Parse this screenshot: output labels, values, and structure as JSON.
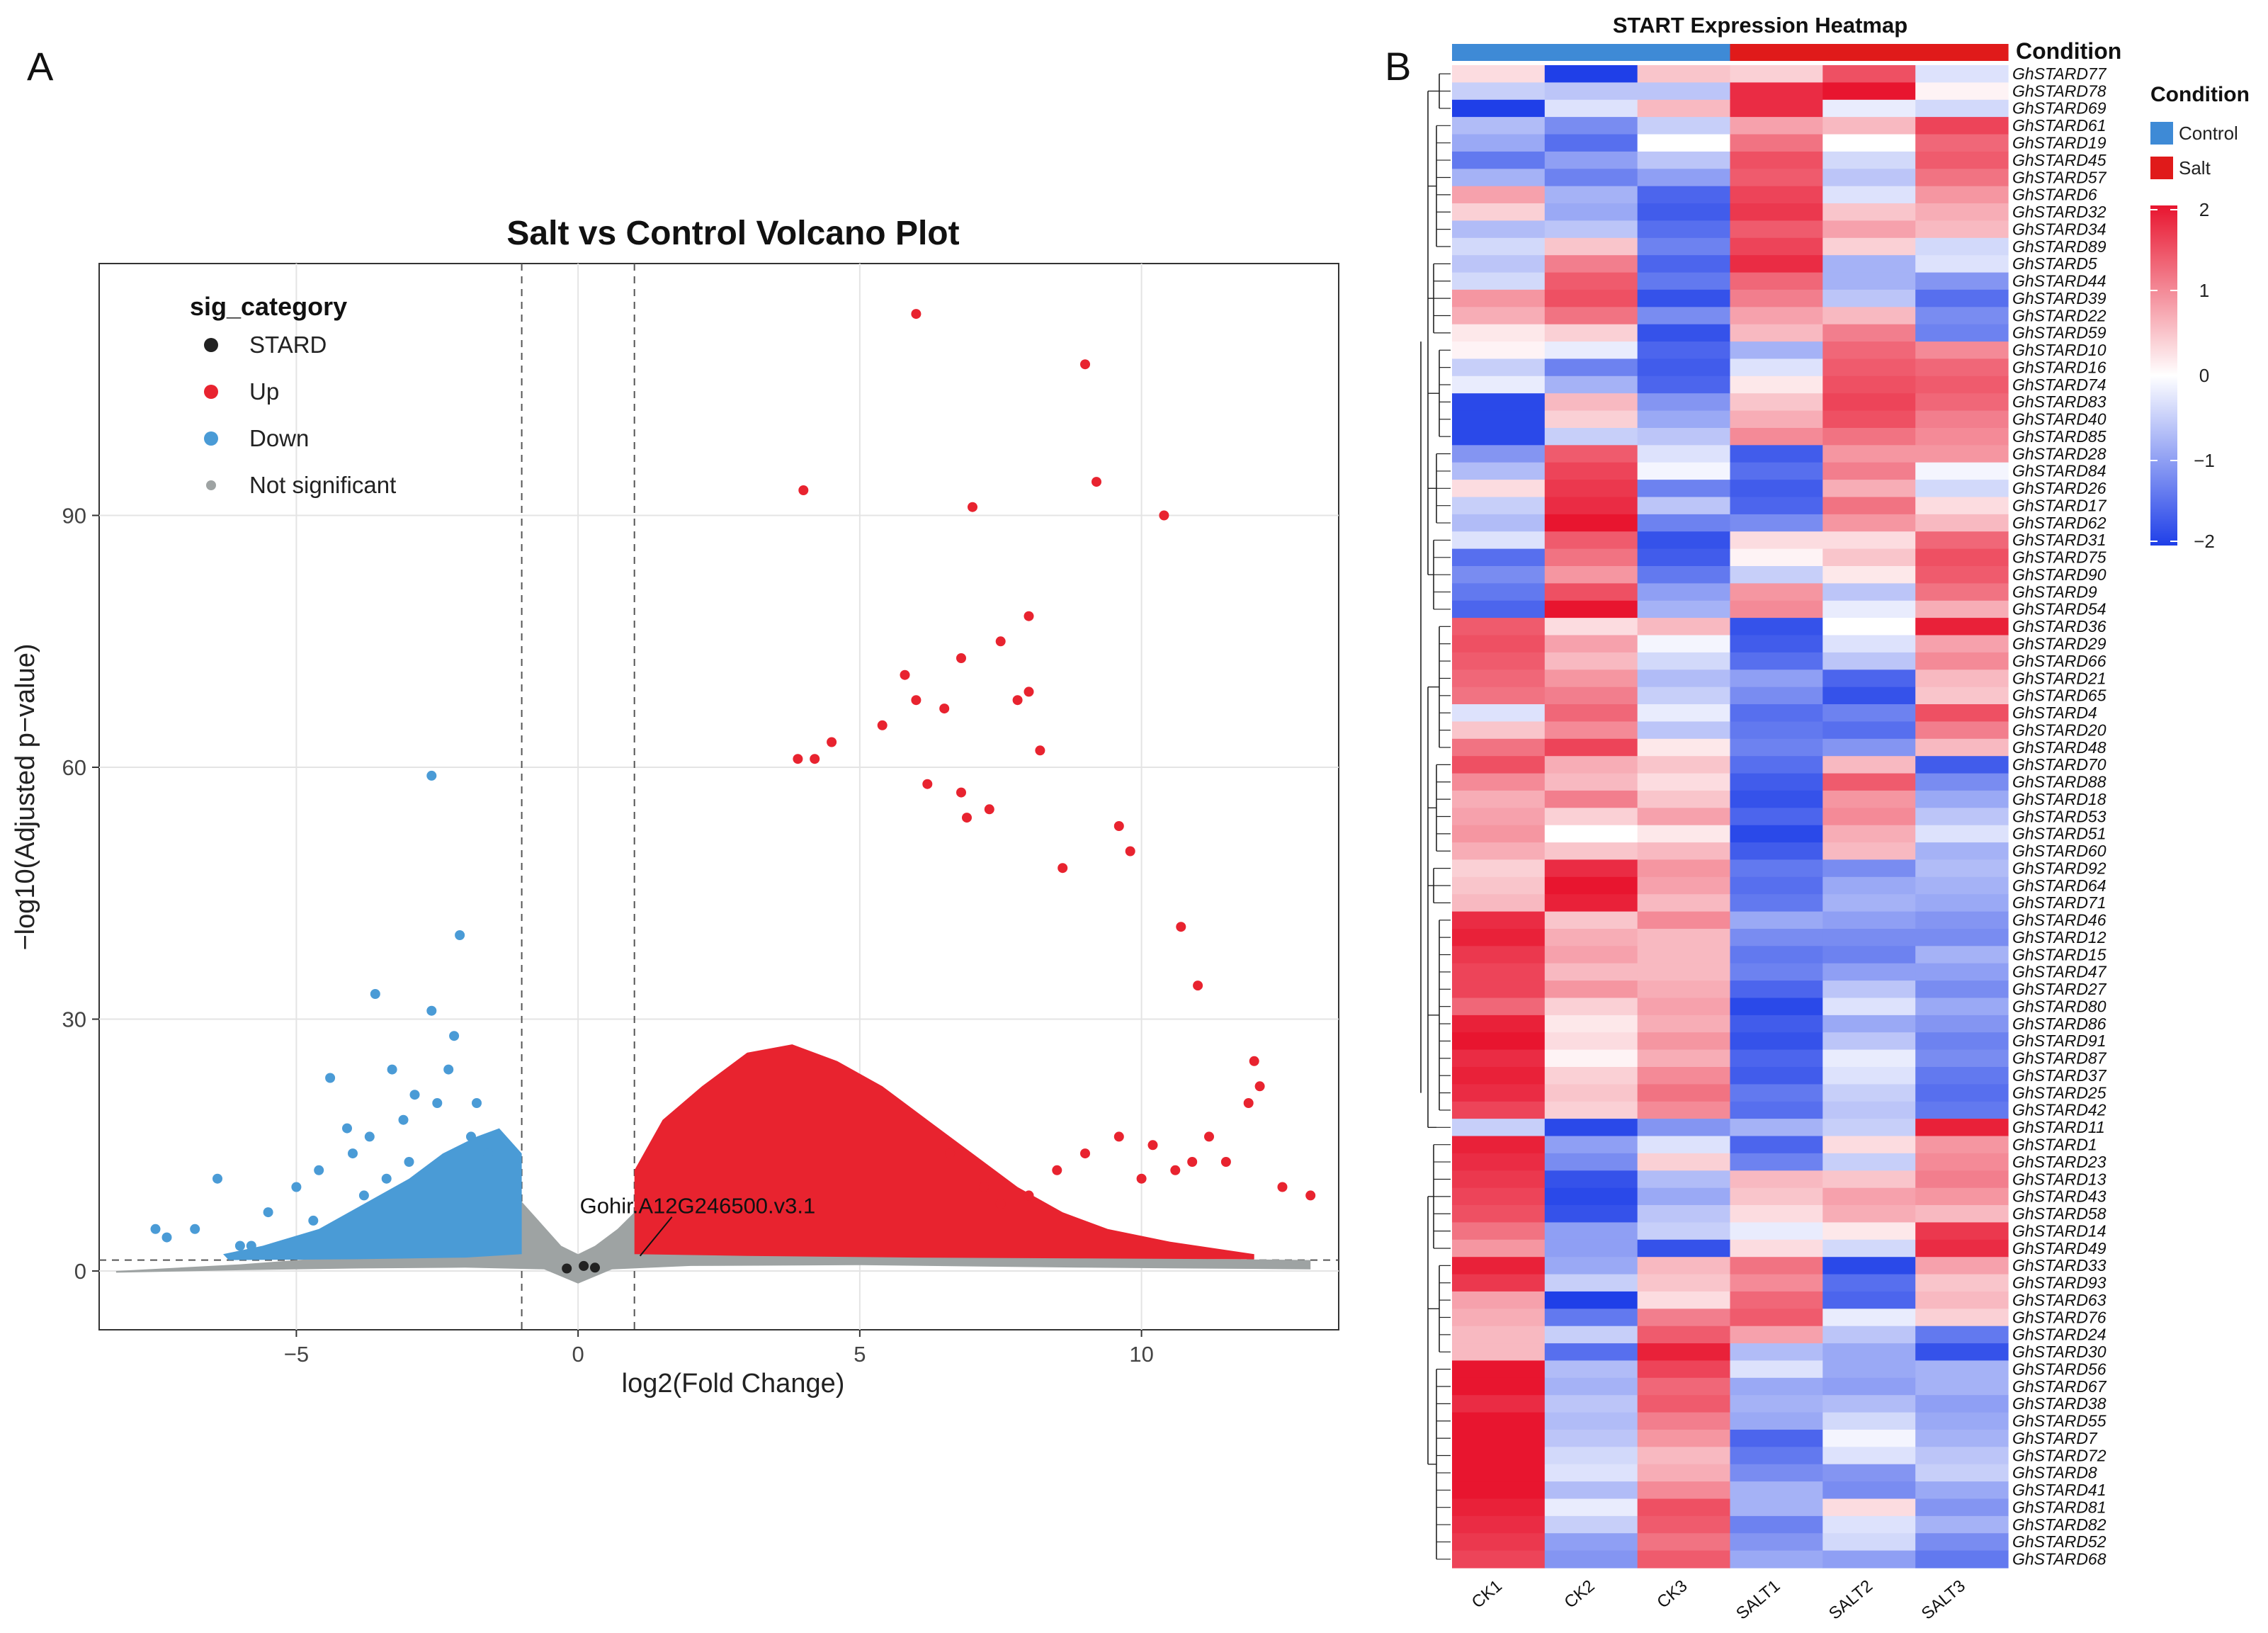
{
  "colors": {
    "up": "#e8232f",
    "down": "#4a9bd6",
    "ns": "#9ea3a3",
    "stard": "#222222",
    "control": "#3e8ad6",
    "salt": "#e01a1a",
    "low": "#1f3fe8",
    "mid": "#ffffff",
    "high": "#e8152f"
  },
  "panel_a": {
    "letter": "A"
  },
  "panel_b": {
    "letter": "B"
  },
  "chart_data": [
    {
      "type": "scatter",
      "title": "Salt vs Control Volcano Plot",
      "xlabel": "log2(Fold Change)",
      "ylabel": "−log10(Adjusted p−value)",
      "xlim": [
        -8.5,
        13.5
      ],
      "ylim": [
        -7,
        120
      ],
      "xticks": [
        -5,
        0,
        5,
        10
      ],
      "xtick_labels": [
        "−5",
        "0",
        "5",
        "10"
      ],
      "yticks": [
        0,
        30,
        60,
        90
      ],
      "ytick_labels": [
        "0",
        "30",
        "60",
        "90"
      ],
      "thresholds": {
        "log2fc": [
          -1,
          1
        ],
        "neg_log10_padj": 1.3
      },
      "legend": {
        "title": "sig_category",
        "position": "top-left",
        "entries": [
          {
            "key": "stard",
            "label": "STARD"
          },
          {
            "key": "up",
            "label": "Up"
          },
          {
            "key": "down",
            "label": "Down"
          },
          {
            "key": "ns",
            "label": "Not significant"
          }
        ]
      },
      "annotation": {
        "label": "Gohir.A12G246500.v3.1",
        "x": 1.1,
        "y": 1.8
      },
      "series": [
        {
          "name": "Up",
          "key": "up",
          "points": [
            [
              6.0,
              114
            ],
            [
              9.0,
              108
            ],
            [
              4.0,
              93
            ],
            [
              9.2,
              94
            ],
            [
              7.0,
              91
            ],
            [
              10.4,
              90
            ],
            [
              8.0,
              78
            ],
            [
              7.5,
              75
            ],
            [
              6.8,
              73
            ],
            [
              5.8,
              71
            ],
            [
              7.8,
              68
            ],
            [
              8.0,
              69
            ],
            [
              6.0,
              68
            ],
            [
              6.5,
              67
            ],
            [
              5.4,
              65
            ],
            [
              8.2,
              62
            ],
            [
              4.5,
              63
            ],
            [
              3.9,
              61
            ],
            [
              4.2,
              61
            ],
            [
              6.2,
              58
            ],
            [
              6.8,
              57
            ],
            [
              7.3,
              55
            ],
            [
              6.9,
              54
            ],
            [
              9.6,
              53
            ],
            [
              9.8,
              50
            ],
            [
              8.6,
              48
            ],
            [
              10.7,
              41
            ],
            [
              11.0,
              34
            ],
            [
              12.0,
              25
            ],
            [
              11.9,
              20
            ],
            [
              12.1,
              22
            ],
            [
              12.5,
              10
            ],
            [
              13.0,
              9
            ],
            [
              11.5,
              13
            ],
            [
              10.6,
              12
            ],
            [
              10.0,
              11
            ],
            [
              9.0,
              14
            ],
            [
              8.5,
              12
            ],
            [
              8.0,
              9
            ],
            [
              7.5,
              8
            ],
            [
              9.6,
              16
            ],
            [
              10.2,
              15
            ],
            [
              10.9,
              13
            ],
            [
              11.2,
              16
            ],
            [
              6.6,
              14
            ],
            [
              7.2,
              10
            ]
          ]
        },
        {
          "name": "Down",
          "key": "down",
          "points": [
            [
              -2.6,
              59
            ],
            [
              -2.1,
              40
            ],
            [
              -3.6,
              33
            ],
            [
              -2.6,
              31
            ],
            [
              -4.4,
              23
            ],
            [
              -3.3,
              24
            ],
            [
              -2.3,
              24
            ],
            [
              -4.1,
              17
            ],
            [
              -3.1,
              18
            ],
            [
              -2.5,
              20
            ],
            [
              -7.5,
              5
            ],
            [
              -7.3,
              4
            ],
            [
              -6.4,
              11
            ],
            [
              -5.0,
              10
            ],
            [
              -5.5,
              7
            ],
            [
              -6.0,
              3
            ],
            [
              -4.6,
              12
            ],
            [
              -4.0,
              14
            ],
            [
              -3.8,
              9
            ],
            [
              -3.0,
              13
            ],
            [
              -1.8,
              20
            ],
            [
              -1.6,
              14
            ],
            [
              -5.8,
              3
            ],
            [
              -6.8,
              5
            ],
            [
              -2.9,
              21
            ],
            [
              -3.4,
              11
            ],
            [
              -4.7,
              6
            ],
            [
              -2.2,
              28
            ],
            [
              -1.9,
              16
            ],
            [
              -3.7,
              16
            ]
          ]
        },
        {
          "name": "STARD",
          "key": "stard",
          "points": [
            [
              0.1,
              0.6
            ],
            [
              -0.2,
              0.3
            ],
            [
              0.3,
              0.4
            ]
          ]
        }
      ]
    },
    {
      "type": "heatmap",
      "title": "START Expression Heatmap",
      "columns": [
        "CK1",
        "CK2",
        "CK3",
        "SALT1",
        "SALT2",
        "SALT3"
      ],
      "column_condition": [
        "Control",
        "Control",
        "Control",
        "Salt",
        "Salt",
        "Salt"
      ],
      "condition_label": "Condition",
      "legend": {
        "title": "Condition",
        "entries": [
          {
            "label": "Control",
            "key": "control"
          },
          {
            "label": "Salt",
            "key": "salt"
          }
        ],
        "scale_min": -2,
        "scale_max": 2,
        "scale_ticks": [
          2,
          1,
          0,
          -1,
          -2
        ],
        "scale_tick_labels": [
          "2",
          "1",
          "0",
          "−1",
          "−2"
        ]
      },
      "rows": [
        "GhSTARD77",
        "GhSTARD78",
        "GhSTARD69",
        "GhSTARD61",
        "GhSTARD19",
        "GhSTARD45",
        "GhSTARD57",
        "GhSTARD6",
        "GhSTARD32",
        "GhSTARD34",
        "GhSTARD89",
        "GhSTARD5",
        "GhSTARD44",
        "GhSTARD39",
        "GhSTARD22",
        "GhSTARD59",
        "GhSTARD10",
        "GhSTARD16",
        "GhSTARD74",
        "GhSTARD83",
        "GhSTARD40",
        "GhSTARD85",
        "GhSTARD28",
        "GhSTARD84",
        "GhSTARD26",
        "GhSTARD17",
        "GhSTARD62",
        "GhSTARD31",
        "GhSTARD75",
        "GhSTARD90",
        "GhSTARD9",
        "GhSTARD54",
        "GhSTARD36",
        "GhSTARD29",
        "GhSTARD66",
        "GhSTARD21",
        "GhSTARD65",
        "GhSTARD4",
        "GhSTARD20",
        "GhSTARD48",
        "GhSTARD70",
        "GhSTARD88",
        "GhSTARD18",
        "GhSTARD53",
        "GhSTARD51",
        "GhSTARD60",
        "GhSTARD92",
        "GhSTARD64",
        "GhSTARD71",
        "GhSTARD46",
        "GhSTARD12",
        "GhSTARD15",
        "GhSTARD47",
        "GhSTARD27",
        "GhSTARD80",
        "GhSTARD86",
        "GhSTARD91",
        "GhSTARD87",
        "GhSTARD37",
        "GhSTARD25",
        "GhSTARD42",
        "GhSTARD11",
        "GhSTARD1",
        "GhSTARD23",
        "GhSTARD13",
        "GhSTARD43",
        "GhSTARD58",
        "GhSTARD14",
        "GhSTARD49",
        "GhSTARD33",
        "GhSTARD93",
        "GhSTARD63",
        "GhSTARD76",
        "GhSTARD24",
        "GhSTARD30",
        "GhSTARD56",
        "GhSTARD67",
        "GhSTARD38",
        "GhSTARD55",
        "GhSTARD7",
        "GhSTARD72",
        "GhSTARD8",
        "GhSTARD41",
        "GhSTARD81",
        "GhSTARD82",
        "GhSTARD52",
        "GhSTARD68"
      ],
      "values": [
        [
          0.3,
          -2,
          0.5,
          0.4,
          1.5,
          -0.3
        ],
        [
          -0.5,
          -0.6,
          -0.6,
          1.8,
          2,
          0.1
        ],
        [
          -2,
          -0.3,
          0.6,
          1.8,
          -0.2,
          -0.4
        ],
        [
          -0.7,
          -1.2,
          -0.5,
          0.8,
          0.6,
          1.6
        ],
        [
          -0.9,
          -1.5,
          0,
          1.2,
          0,
          1.3
        ],
        [
          -1.4,
          -1,
          -0.6,
          1.5,
          -0.4,
          1.4
        ],
        [
          -0.8,
          -1.3,
          -1,
          1.4,
          -0.6,
          1.2
        ],
        [
          0.8,
          -0.8,
          -1.6,
          1.6,
          -0.3,
          0.9
        ],
        [
          0.4,
          -0.9,
          -1.7,
          1.7,
          0.5,
          0.7
        ],
        [
          -0.7,
          -0.6,
          -1.5,
          1.4,
          0.8,
          0.6
        ],
        [
          -0.4,
          0.5,
          -1.3,
          1.6,
          0.4,
          -0.4
        ],
        [
          -0.6,
          1.1,
          -1.6,
          1.8,
          -0.8,
          -0.3
        ],
        [
          -0.4,
          1.4,
          -1.4,
          1.3,
          -0.8,
          -1.1
        ],
        [
          0.9,
          1.5,
          -1.8,
          1.1,
          -0.6,
          -1.5
        ],
        [
          0.7,
          1.2,
          -1.2,
          0.8,
          0.6,
          -1.2
        ],
        [
          0.2,
          0.4,
          -1.8,
          0.6,
          1.1,
          -1.3
        ],
        [
          0.1,
          -0.2,
          -1.6,
          -0.8,
          1.3,
          1
        ],
        [
          -0.5,
          -1.3,
          -1.7,
          -0.3,
          1.4,
          1.3
        ],
        [
          -0.2,
          -0.8,
          -1.6,
          0.2,
          1.5,
          1.4
        ],
        [
          -1.9,
          0.6,
          -1.1,
          0.5,
          1.6,
          1.3
        ],
        [
          -1.9,
          0.4,
          -0.9,
          0.7,
          1.5,
          1.1
        ],
        [
          -1.9,
          -0.5,
          -0.6,
          1,
          1.2,
          1
        ],
        [
          -1.1,
          1.4,
          -0.3,
          -1.7,
          0.9,
          0.9
        ],
        [
          -0.7,
          1.6,
          -0.1,
          -1.5,
          1.1,
          -0.1
        ],
        [
          0.3,
          1.7,
          -1.3,
          -1.7,
          0.7,
          -0.4
        ],
        [
          -0.5,
          1.8,
          -0.6,
          -1.6,
          1.2,
          0.3
        ],
        [
          -0.7,
          2,
          -1.3,
          -1.2,
          0.9,
          0.6
        ],
        [
          -0.3,
          1.4,
          -1.8,
          0.3,
          0.3,
          1.3
        ],
        [
          -1.5,
          1.2,
          -1.7,
          0.1,
          0.5,
          1.5
        ],
        [
          -1.2,
          0.9,
          -1.4,
          -0.5,
          0.2,
          1.4
        ],
        [
          -1.4,
          1.5,
          -1,
          0.9,
          -0.6,
          1.2
        ],
        [
          -1.6,
          2,
          -0.8,
          1,
          -0.2,
          0.7
        ],
        [
          1.4,
          0.3,
          0.6,
          -1.8,
          0,
          1.9
        ],
        [
          1.5,
          0.8,
          -0.1,
          -1.7,
          -0.3,
          0.8
        ],
        [
          1.4,
          0.6,
          -0.4,
          -1.5,
          -0.6,
          1
        ],
        [
          1.3,
          0.9,
          -0.7,
          -1,
          -1.6,
          0.6
        ],
        [
          1.2,
          1.1,
          -0.5,
          -1.2,
          -1.8,
          0.5
        ],
        [
          -0.3,
          1.3,
          -0.2,
          -1.5,
          -1.3,
          1.5
        ],
        [
          0.5,
          1,
          -0.6,
          -1.4,
          -1.5,
          1.1
        ],
        [
          1.2,
          1.6,
          0.2,
          -1.3,
          -1.1,
          0.6
        ],
        [
          1.5,
          0.7,
          0.5,
          -1.5,
          0.6,
          -1.7
        ],
        [
          1,
          0.6,
          0.3,
          -1.7,
          1.4,
          -1.2
        ],
        [
          0.7,
          1.1,
          0.5,
          -1.8,
          0.9,
          -0.9
        ],
        [
          0.8,
          0.4,
          0.8,
          -1.6,
          1,
          -0.6
        ],
        [
          0.9,
          0,
          0.2,
          -1.9,
          0.7,
          -0.3
        ],
        [
          0.7,
          0.5,
          0.6,
          -1.7,
          0.6,
          -0.8
        ],
        [
          0.4,
          1.8,
          0.9,
          -1.4,
          -1.2,
          -0.7
        ],
        [
          0.5,
          2,
          0.8,
          -1.5,
          -0.9,
          -0.8
        ],
        [
          0.6,
          1.9,
          0.6,
          -1.4,
          -0.8,
          -0.9
        ],
        [
          1.8,
          0.5,
          1,
          -0.9,
          -1,
          -1.1
        ],
        [
          1.9,
          0.7,
          0.6,
          -1.2,
          -1.2,
          -1.2
        ],
        [
          1.7,
          0.8,
          0.6,
          -1.4,
          -1.3,
          -0.8
        ],
        [
          1.6,
          0.6,
          0.6,
          -1.3,
          -1,
          -1
        ],
        [
          1.6,
          0.9,
          0.7,
          -1.6,
          -0.6,
          -1.2
        ],
        [
          1.3,
          0.4,
          0.8,
          -1.9,
          -0.3,
          -0.9
        ],
        [
          1.9,
          0.2,
          0.7,
          -1.7,
          -0.9,
          -1.1
        ],
        [
          2,
          0.3,
          0.9,
          -1.8,
          -0.6,
          -1.3
        ],
        [
          1.8,
          0.1,
          0.7,
          -1.6,
          -0.2,
          -1.2
        ],
        [
          1.9,
          0.4,
          1,
          -1.7,
          -0.3,
          -1.4
        ],
        [
          1.8,
          0.5,
          1.2,
          -1.4,
          -0.5,
          -1.5
        ],
        [
          1.6,
          0.4,
          1,
          -1.5,
          -0.6,
          -1.4
        ],
        [
          -0.5,
          -1.9,
          -1.1,
          -0.8,
          -0.5,
          1.9
        ],
        [
          1.9,
          -1,
          -0.3,
          -1.6,
          0.3,
          0.9
        ],
        [
          1.8,
          -1.2,
          0.4,
          -1.3,
          -0.5,
          1
        ],
        [
          1.7,
          -1.8,
          -0.7,
          0.6,
          0.5,
          1.1
        ],
        [
          1.6,
          -1.9,
          -0.9,
          0.5,
          0.8,
          0.9
        ],
        [
          1.5,
          -1.8,
          -0.6,
          0.3,
          0.7,
          0.6
        ],
        [
          1.2,
          -1,
          -0.5,
          -0.2,
          0.2,
          1.7
        ],
        [
          0.9,
          -1,
          -1.8,
          0.3,
          -0.4,
          1.8
        ],
        [
          1.9,
          -0.9,
          0.6,
          1.2,
          -1.9,
          0.8
        ],
        [
          1.7,
          -0.5,
          0.5,
          1,
          -1.5,
          0.5
        ],
        [
          0.8,
          -2,
          0.3,
          1.3,
          -1.6,
          0.6
        ],
        [
          0.7,
          -1.4,
          1.1,
          1.4,
          -0.2,
          0.4
        ],
        [
          0.6,
          -0.5,
          1.4,
          0.8,
          -0.6,
          -1.4
        ],
        [
          0.6,
          -1.5,
          1.9,
          -0.7,
          -0.9,
          -1.8
        ],
        [
          2,
          -0.7,
          1.6,
          -0.3,
          -0.9,
          -0.8
        ],
        [
          2,
          -0.8,
          1.3,
          -0.9,
          -1,
          -0.8
        ],
        [
          1.8,
          -0.6,
          1.4,
          -0.8,
          -0.7,
          -1
        ],
        [
          2,
          -0.7,
          1.1,
          -0.9,
          -0.4,
          -0.9
        ],
        [
          2,
          -0.6,
          0.9,
          -1.6,
          -0.1,
          -0.8
        ],
        [
          2,
          -0.4,
          0.6,
          -1.4,
          -0.3,
          -0.6
        ],
        [
          2,
          -0.3,
          0.7,
          -1.2,
          -1.1,
          -0.5
        ],
        [
          2,
          -0.7,
          1,
          -0.8,
          -1.2,
          -0.9
        ],
        [
          1.9,
          -0.2,
          1.5,
          -0.8,
          0.3,
          -1.1
        ],
        [
          1.8,
          -0.5,
          1.4,
          -1.3,
          -0.3,
          -0.8
        ],
        [
          1.7,
          -1,
          1.2,
          -1.1,
          -0.4,
          -1.2
        ],
        [
          1.6,
          -1.1,
          1.4,
          -0.9,
          -1,
          -1.4
        ]
      ]
    }
  ]
}
